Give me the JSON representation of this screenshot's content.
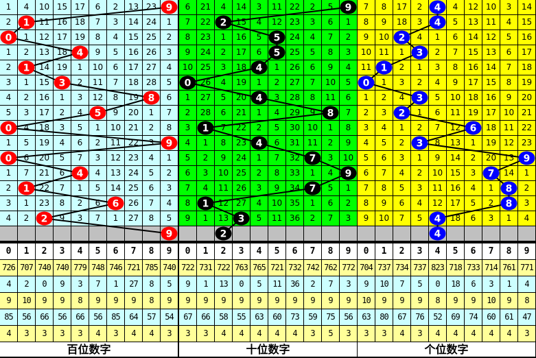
{
  "header_digits": [
    "0",
    "1",
    "2",
    "3",
    "4",
    "5",
    "6",
    "7",
    "8",
    "9"
  ],
  "colors": {
    "gray_row": "#c0c0c0",
    "stat_yellow": "#ffff99",
    "stat_cyan": "#ccffff"
  },
  "sections": [
    {
      "label": "百位数字",
      "bg": "#ccffff",
      "ball_color": "#ff0000",
      "ball_text": "#ffffff",
      "rows": [
        [
          1,
          4,
          10,
          15,
          17,
          6,
          2,
          13,
          23,
          9
        ],
        [
          2,
          1,
          11,
          16,
          18,
          7,
          3,
          14,
          24,
          1
        ],
        [
          0,
          1,
          12,
          17,
          19,
          8,
          4,
          15,
          25,
          2
        ],
        [
          1,
          2,
          13,
          18,
          4,
          9,
          5,
          16,
          26,
          3
        ],
        [
          2,
          1,
          14,
          19,
          1,
          10,
          6,
          17,
          27,
          4
        ],
        [
          3,
          1,
          15,
          3,
          2,
          11,
          7,
          18,
          28,
          5
        ],
        [
          4,
          2,
          16,
          1,
          3,
          12,
          8,
          19,
          8,
          6
        ],
        [
          5,
          3,
          17,
          2,
          4,
          5,
          9,
          20,
          1,
          7
        ],
        [
          0,
          4,
          18,
          3,
          5,
          1,
          10,
          21,
          2,
          8
        ],
        [
          1,
          5,
          19,
          4,
          6,
          2,
          11,
          22,
          3,
          9
        ],
        [
          0,
          6,
          20,
          5,
          7,
          3,
          12,
          23,
          4,
          1
        ],
        [
          1,
          7,
          21,
          6,
          4,
          4,
          13,
          24,
          5,
          2
        ],
        [
          2,
          1,
          22,
          7,
          1,
          5,
          14,
          25,
          6,
          3
        ],
        [
          3,
          1,
          23,
          8,
          2,
          6,
          6,
          26,
          7,
          4
        ],
        [
          4,
          2,
          2,
          9,
          3,
          7,
          1,
          27,
          8,
          5
        ]
      ],
      "hits": [
        9,
        1,
        0,
        4,
        1,
        3,
        8,
        5,
        0,
        9,
        0,
        4,
        1,
        6,
        2
      ],
      "prediction": 9,
      "stats": [
        [
          726,
          707,
          740,
          740,
          779,
          748,
          746,
          721,
          785,
          740
        ],
        [
          4,
          2,
          0,
          9,
          3,
          7,
          1,
          27,
          8,
          5
        ],
        [
          9,
          10,
          9,
          9,
          8,
          9,
          9,
          9,
          8,
          9
        ],
        [
          85,
          56,
          66,
          56,
          66,
          56,
          85,
          64,
          57,
          54
        ],
        [
          4,
          3,
          3,
          3,
          3,
          4,
          3,
          4,
          4,
          3
        ]
      ]
    },
    {
      "label": "十位数字",
      "bg": "#00ff00",
      "ball_color": "#000000",
      "ball_text": "#ffffff",
      "rows": [
        [
          6,
          21,
          4,
          14,
          3,
          11,
          22,
          2,
          5,
          9
        ],
        [
          7,
          22,
          2,
          15,
          4,
          12,
          23,
          3,
          6,
          1
        ],
        [
          8,
          23,
          1,
          16,
          5,
          5,
          24,
          4,
          7,
          2
        ],
        [
          9,
          24,
          2,
          17,
          6,
          5,
          25,
          5,
          8,
          3
        ],
        [
          10,
          25,
          3,
          18,
          4,
          1,
          26,
          6,
          9,
          4
        ],
        [
          0,
          26,
          4,
          19,
          1,
          2,
          27,
          7,
          10,
          5
        ],
        [
          1,
          27,
          5,
          20,
          4,
          3,
          28,
          8,
          11,
          6
        ],
        [
          2,
          28,
          6,
          21,
          1,
          4,
          29,
          9,
          8,
          7
        ],
        [
          3,
          1,
          7,
          22,
          2,
          5,
          30,
          10,
          1,
          8
        ],
        [
          4,
          1,
          8,
          23,
          4,
          6,
          31,
          11,
          2,
          9
        ],
        [
          5,
          2,
          9,
          24,
          1,
          7,
          32,
          7,
          3,
          10
        ],
        [
          6,
          3,
          10,
          25,
          2,
          8,
          33,
          1,
          4,
          9
        ],
        [
          7,
          4,
          11,
          26,
          3,
          9,
          34,
          7,
          5,
          1
        ],
        [
          8,
          1,
          12,
          27,
          4,
          10,
          35,
          1,
          6,
          2
        ],
        [
          9,
          1,
          13,
          3,
          5,
          11,
          36,
          2,
          7,
          3
        ]
      ],
      "hits": [
        9,
        2,
        5,
        5,
        4,
        0,
        4,
        8,
        1,
        4,
        7,
        9,
        7,
        1,
        3
      ],
      "prediction": 2,
      "stats": [
        [
          722,
          731,
          722,
          763,
          765,
          721,
          732,
          742,
          762,
          772
        ],
        [
          9,
          1,
          13,
          0,
          5,
          11,
          36,
          2,
          7,
          3
        ],
        [
          9,
          9,
          9,
          9,
          9,
          9,
          9,
          9,
          9,
          9
        ],
        [
          67,
          66,
          58,
          55,
          63,
          60,
          73,
          59,
          75,
          56
        ],
        [
          3,
          3,
          4,
          4,
          4,
          4,
          4,
          3,
          5,
          3
        ]
      ]
    },
    {
      "label": "个位数字",
      "bg": "#ffff00",
      "ball_color": "#0000ff",
      "ball_text": "#ffffff",
      "rows": [
        [
          7,
          8,
          17,
          2,
          4,
          4,
          12,
          10,
          3,
          14
        ],
        [
          8,
          9,
          18,
          3,
          4,
          5,
          13,
          11,
          4,
          15
        ],
        [
          9,
          10,
          2,
          4,
          1,
          6,
          14,
          12,
          5,
          16
        ],
        [
          10,
          11,
          1,
          3,
          2,
          7,
          15,
          13,
          6,
          17
        ],
        [
          11,
          1,
          2,
          1,
          3,
          8,
          16,
          14,
          7,
          18
        ],
        [
          0,
          1,
          3,
          2,
          4,
          9,
          17,
          15,
          8,
          19
        ],
        [
          1,
          2,
          4,
          3,
          5,
          10,
          18,
          16,
          9,
          20
        ],
        [
          2,
          3,
          2,
          1,
          6,
          11,
          19,
          17,
          10,
          21
        ],
        [
          3,
          4,
          1,
          2,
          7,
          12,
          6,
          18,
          11,
          22
        ],
        [
          4,
          5,
          2,
          3,
          8,
          13,
          1,
          19,
          12,
          23
        ],
        [
          5,
          6,
          3,
          1,
          9,
          14,
          2,
          20,
          13,
          9
        ],
        [
          6,
          7,
          4,
          2,
          10,
          15,
          3,
          7,
          14,
          1
        ],
        [
          7,
          8,
          5,
          3,
          11,
          16,
          4,
          1,
          8,
          2
        ],
        [
          8,
          9,
          6,
          4,
          12,
          17,
          5,
          2,
          8,
          3
        ],
        [
          9,
          10,
          7,
          5,
          4,
          18,
          6,
          3,
          1,
          4
        ]
      ],
      "hits": [
        4,
        4,
        2,
        3,
        1,
        0,
        3,
        2,
        6,
        3,
        9,
        7,
        8,
        8,
        4
      ],
      "prediction": 4,
      "stats": [
        [
          704,
          737,
          734,
          737,
          823,
          718,
          733,
          714,
          761,
          771
        ],
        [
          9,
          10,
          7,
          5,
          0,
          18,
          6,
          3,
          1,
          4
        ],
        [
          10,
          9,
          9,
          9,
          8,
          9,
          9,
          10,
          9,
          8
        ],
        [
          63,
          80,
          67,
          76,
          52,
          69,
          74,
          60,
          61,
          47
        ],
        [
          3,
          3,
          4,
          3,
          4,
          4,
          4,
          4,
          4,
          3
        ]
      ]
    }
  ]
}
